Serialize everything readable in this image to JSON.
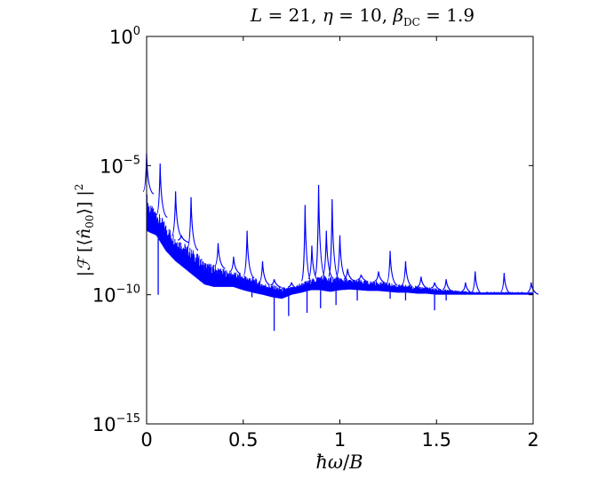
{
  "chart_data": {
    "type": "line",
    "title": "L = 21, η = 10, β_DC = 1.9",
    "xlabel": "ħω/B",
    "ylabel": "|𝓕[⟨n̂₀₀⟩]|²",
    "xlim": [
      0,
      2
    ],
    "ylim": [
      1e-15,
      1
    ],
    "yscale": "log",
    "x_ticks": [
      0,
      0.5,
      1,
      1.5,
      2
    ],
    "x_tick_labels": [
      "0",
      "0.5",
      "1",
      "1.5",
      "2"
    ],
    "y_ticks": [
      1e-15,
      1e-10,
      1e-05,
      1
    ],
    "y_tick_labels": [
      {
        "base": "10",
        "exp": "−15"
      },
      {
        "base": "10",
        "exp": "−10"
      },
      {
        "base": "10",
        "exp": "−5"
      },
      {
        "base": "10",
        "exp": "0"
      }
    ],
    "grid": false,
    "series_color": "#0000ff",
    "series": [
      {
        "envelope": {
          "x": [
            0.0,
            0.02,
            0.05,
            0.1,
            0.15,
            0.2,
            0.25,
            0.3,
            0.35,
            0.4,
            0.45,
            0.5,
            0.55,
            0.6,
            0.65,
            0.7,
            0.75,
            0.8,
            0.85,
            0.9,
            0.95,
            1.0,
            1.05,
            1.1,
            1.15,
            1.2,
            1.25,
            1.3,
            1.35,
            1.4,
            1.45,
            1.5,
            1.55,
            1.6,
            1.65,
            1.7,
            1.75,
            1.8,
            1.85,
            1.9,
            1.95,
            2.0
          ],
          "low": [
            3e-08,
            2.5e-08,
            2e-08,
            5e-09,
            2e-09,
            1e-09,
            5e-10,
            2.5e-10,
            2e-10,
            2e-10,
            2e-10,
            1.5e-10,
            1.2e-10,
            1e-10,
            8e-11,
            7e-11,
            1e-10,
            1.2e-10,
            1.5e-10,
            1.5e-10,
            1.3e-10,
            1.5e-10,
            1.6e-10,
            1.5e-10,
            1.4e-10,
            1.4e-10,
            1.3e-10,
            1.2e-10,
            1.2e-10,
            1.1e-10,
            1.1e-10,
            1e-10,
            1e-10,
            1e-10,
            1e-10,
            1e-10,
            1e-10,
            1e-10,
            1e-10,
            1e-10,
            1e-10,
            1e-10
          ],
          "high": [
            1e-06,
            3e-07,
            2e-07,
            6e-08,
            2e-08,
            1e-08,
            5e-09,
            2e-09,
            1.5e-09,
            1e-09,
            8e-10,
            6e-10,
            5e-10,
            3e-10,
            2.5e-10,
            2e-10,
            2e-10,
            3e-10,
            4e-10,
            6e-10,
            5e-10,
            5e-10,
            4e-10,
            4e-10,
            3.5e-10,
            3.5e-10,
            3e-10,
            2.5e-10,
            2.5e-10,
            2.2e-10,
            2e-10,
            1.8e-10,
            1.6e-10,
            1.5e-10,
            1.4e-10,
            1.3e-10,
            1.3e-10,
            1.3e-10,
            1.3e-10,
            1.3e-10,
            1.3e-10,
            1.3e-10
          ]
        },
        "peaks": [
          {
            "x": 0.0,
            "y": 3e-05
          },
          {
            "x": 0.07,
            "y": 1.2e-05
          },
          {
            "x": 0.15,
            "y": 1e-06
          },
          {
            "x": 0.18,
            "y": 2e-08
          },
          {
            "x": 0.23,
            "y": 6e-07
          },
          {
            "x": 0.37,
            "y": 1e-08
          },
          {
            "x": 0.45,
            "y": 3e-09
          },
          {
            "x": 0.52,
            "y": 3e-08
          },
          {
            "x": 0.6,
            "y": 2e-09
          },
          {
            "x": 0.66,
            "y": 4e-10
          },
          {
            "x": 0.75,
            "y": 3e-10
          },
          {
            "x": 0.82,
            "y": 3e-07
          },
          {
            "x": 0.855,
            "y": 8e-09
          },
          {
            "x": 0.89,
            "y": 1.8e-06
          },
          {
            "x": 0.93,
            "y": 3e-08
          },
          {
            "x": 0.96,
            "y": 5e-07
          },
          {
            "x": 1.0,
            "y": 2e-08
          },
          {
            "x": 1.04,
            "y": 1e-09
          },
          {
            "x": 1.11,
            "y": 6e-10
          },
          {
            "x": 1.2,
            "y": 8e-10
          },
          {
            "x": 1.26,
            "y": 5e-09
          },
          {
            "x": 1.34,
            "y": 2e-09
          },
          {
            "x": 1.42,
            "y": 5e-10
          },
          {
            "x": 1.49,
            "y": 3e-10
          },
          {
            "x": 1.55,
            "y": 4e-10
          },
          {
            "x": 1.65,
            "y": 3e-10
          },
          {
            "x": 1.7,
            "y": 8e-10
          },
          {
            "x": 1.85,
            "y": 7e-10
          },
          {
            "x": 1.99,
            "y": 3e-10
          }
        ],
        "dips": [
          {
            "x": 0.06,
            "y": 1e-10
          },
          {
            "x": 0.545,
            "y": 8e-11
          },
          {
            "x": 0.66,
            "y": 4e-12
          },
          {
            "x": 0.735,
            "y": 1.5e-11
          },
          {
            "x": 0.83,
            "y": 2e-11
          },
          {
            "x": 0.9,
            "y": 3e-11
          },
          {
            "x": 0.98,
            "y": 4e-11
          },
          {
            "x": 1.09,
            "y": 6e-11
          },
          {
            "x": 1.26,
            "y": 7e-11
          },
          {
            "x": 1.34,
            "y": 6e-11
          },
          {
            "x": 1.49,
            "y": 2.5e-11
          },
          {
            "x": 1.55,
            "y": 6e-11
          }
        ]
      }
    ]
  }
}
